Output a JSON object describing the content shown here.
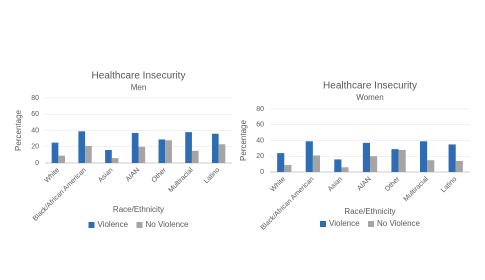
{
  "chart_data": [
    {
      "type": "bar",
      "title": "Healthcare Insecurity",
      "subtitle": "Men",
      "x_label": "Race/Ethnicity",
      "y_label": "Percentage",
      "categories": [
        "White",
        "Black/African American",
        "Asian",
        "AIAN",
        "Other",
        "Multiracial",
        "Latino"
      ],
      "series": [
        {
          "name": "Violence",
          "color": "#2e6db4",
          "values": [
            25,
            39,
            16,
            37,
            29,
            38,
            36
          ]
        },
        {
          "name": "No Violence",
          "color": "#a5a5a5",
          "values": [
            9,
            21,
            6,
            20,
            28,
            15,
            23
          ]
        }
      ],
      "ylim": [
        0,
        80
      ],
      "yticks": [
        0,
        20,
        40,
        60,
        80
      ],
      "grid": true,
      "legend": "bottom"
    },
    {
      "type": "bar",
      "title": "Healthcare Insecurity",
      "subtitle": "Women",
      "x_label": "Race/Ethnicity",
      "y_label": "Percentage",
      "categories": [
        "White",
        "Black/African American",
        "Asian",
        "AIAN",
        "Other",
        "Multiracial",
        "Latino"
      ],
      "series": [
        {
          "name": "Violence",
          "color": "#2e6db4",
          "values": [
            24,
            39,
            16,
            37,
            29,
            39,
            35
          ]
        },
        {
          "name": "No Violence",
          "color": "#a5a5a5",
          "values": [
            9,
            21,
            6,
            20,
            28,
            15,
            14
          ]
        }
      ],
      "ylim": [
        0,
        80
      ],
      "yticks": [
        0,
        20,
        40,
        60,
        80
      ],
      "grid": true,
      "legend": "bottom"
    }
  ]
}
